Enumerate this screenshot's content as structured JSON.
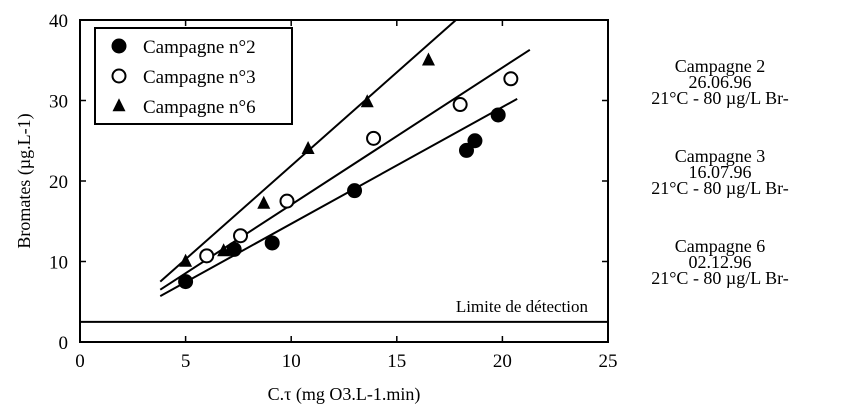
{
  "chart_data": {
    "type": "scatter",
    "xlabel": "C.τ (mg O3.L-1.min)",
    "ylabel": "Bromates (µg.L-1)",
    "xlim": [
      0,
      25
    ],
    "ylim": [
      0,
      40
    ],
    "xticks": [
      "0",
      "5",
      "10",
      "15",
      "20",
      "25"
    ],
    "yticks": [
      "0",
      "10",
      "20",
      "30",
      "40"
    ],
    "grid": false,
    "legend_position": "top-left",
    "series": [
      {
        "name": "Campagne n°2",
        "marker": "filled-circle",
        "x": [
          5.0,
          7.3,
          9.1,
          13.0,
          18.3,
          18.7,
          19.8
        ],
        "y": [
          7.5,
          11.5,
          12.3,
          18.8,
          23.8,
          25.0,
          28.2
        ],
        "fit": {
          "x": [
            3.8,
            20.7
          ],
          "y": [
            5.7,
            30.2
          ]
        }
      },
      {
        "name": "Campagne n°3",
        "marker": "open-circle",
        "x": [
          6.0,
          7.6,
          9.8,
          13.9,
          18.0,
          20.4
        ],
        "y": [
          10.7,
          13.2,
          17.5,
          25.3,
          29.5,
          32.7
        ],
        "fit": {
          "x": [
            3.8,
            21.3
          ],
          "y": [
            6.5,
            36.3
          ]
        }
      },
      {
        "name": "Campagne n°6",
        "marker": "filled-triangle",
        "x": [
          5.0,
          6.8,
          8.7,
          10.8,
          13.6,
          16.5
        ],
        "y": [
          10.0,
          11.3,
          17.2,
          24.0,
          29.8,
          35.0
        ],
        "fit": {
          "x": [
            3.8,
            17.8
          ],
          "y": [
            7.5,
            40.0
          ]
        }
      }
    ],
    "annotations": [
      {
        "text": "Limite de détection",
        "y": 2.5
      }
    ]
  },
  "side_notes": [
    {
      "line1": "Campagne  2",
      "line2": "26.06.96",
      "line3": "21°C - 80 µg/L Br-"
    },
    {
      "line1": "Campagne  3",
      "line2": "16.07.96",
      "line3": "21°C - 80 µg/L Br-"
    },
    {
      "line1": "Campagne  6",
      "line2": "02.12.96",
      "line3": "21°C - 80 µg/L Br-"
    }
  ]
}
